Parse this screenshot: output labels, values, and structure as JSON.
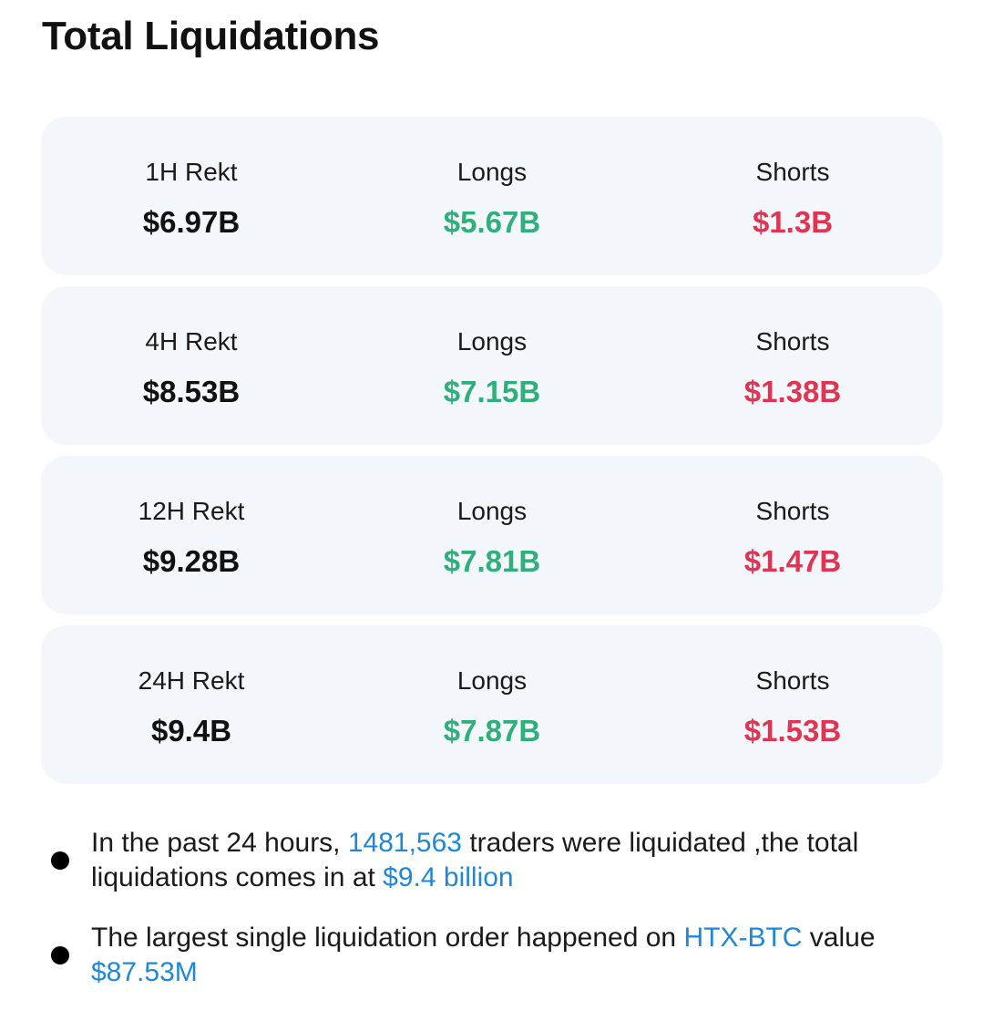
{
  "title": "Total Liquidations",
  "colors": {
    "long": "#2fb07a",
    "short": "#e13452",
    "link": "#1e88d8",
    "card_bg": "#f3f6fa"
  },
  "cards": [
    {
      "period_label": "1H Rekt",
      "total": "$6.97B",
      "longs_label": "Longs",
      "longs": "$5.67B",
      "shorts_label": "Shorts",
      "shorts": "$1.3B"
    },
    {
      "period_label": "4H Rekt",
      "total": "$8.53B",
      "longs_label": "Longs",
      "longs": "$7.15B",
      "shorts_label": "Shorts",
      "shorts": "$1.38B"
    },
    {
      "period_label": "12H Rekt",
      "total": "$9.28B",
      "longs_label": "Longs",
      "longs": "$7.81B",
      "shorts_label": "Shorts",
      "shorts": "$1.47B"
    },
    {
      "period_label": "24H Rekt",
      "total": "$9.4B",
      "longs_label": "Longs",
      "longs": "$7.87B",
      "shorts_label": "Shorts",
      "shorts": "$1.53B"
    }
  ],
  "notes": {
    "first": {
      "text_before": "In the past 24 hours, ",
      "traders": "1481,563",
      "text_middle": " traders were liquidated ,the total liquidations comes in at ",
      "total_value": "$9.4 billion"
    },
    "second": {
      "text_before": "The largest single liquidation order happened on ",
      "exchange": "HTX-BTC",
      "text_middle": " value ",
      "value": "$87.53M"
    }
  }
}
